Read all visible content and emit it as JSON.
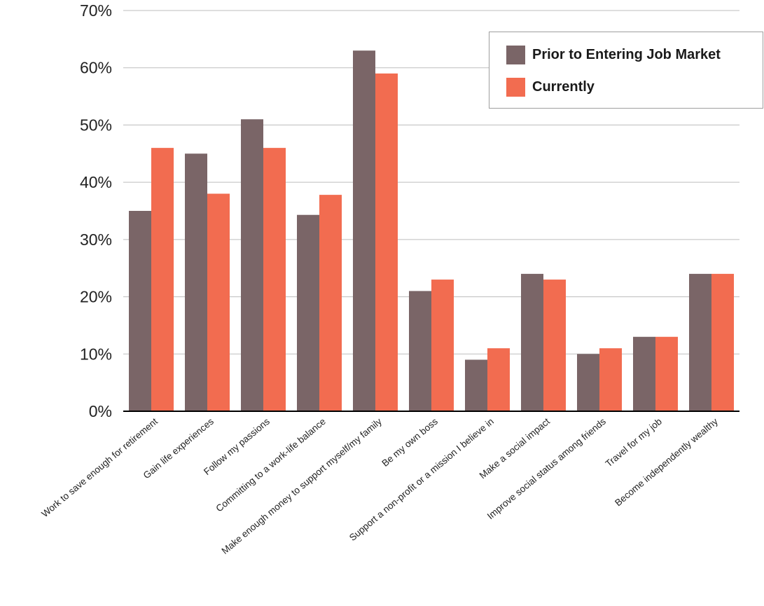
{
  "chart_data": {
    "type": "bar",
    "categories": [
      "Work to save enough for retirement",
      "Gain life experiences",
      "Follow my passions",
      "Committing to a work-life balance",
      "Make enough money to support myself/my family",
      "Be my own boss",
      "Support a non-profit or a mission I believe in",
      "Make a social impact",
      "Improve social status among friends",
      "Travel for my job",
      "Become independently wealthy"
    ],
    "series": [
      {
        "name": "Prior to Entering Job Market",
        "color": "#7a6567",
        "values": [
          35,
          45,
          51,
          34.3,
          63,
          21,
          9,
          24,
          10,
          13,
          24
        ]
      },
      {
        "name": "Currently",
        "color": "#f26c50",
        "values": [
          46,
          38,
          46,
          37.8,
          59,
          23,
          11,
          23,
          11,
          13,
          24
        ]
      }
    ],
    "yticks": [
      "0%",
      "10%",
      "20%",
      "30%",
      "40%",
      "50%",
      "60%",
      "70%"
    ],
    "ylim": [
      0,
      70
    ],
    "grid": true,
    "legend_position": "top-right"
  }
}
